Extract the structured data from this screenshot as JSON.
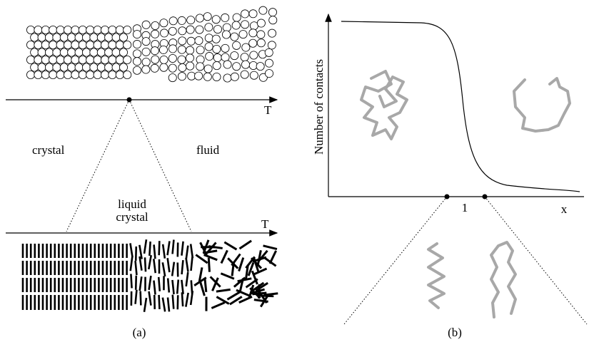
{
  "panel_a": {
    "top_axis_label": "T",
    "crystal_label": "crystal",
    "fluid_label": "fluid",
    "liquid_crystal_label": [
      "liquid",
      "crystal"
    ],
    "bottom_axis_label": "T",
    "caption": "(a)"
  },
  "panel_b": {
    "y_axis_label": "Number of contacts",
    "x_tick_label": "1",
    "x_axis_label": "x",
    "caption": "(b)"
  }
}
